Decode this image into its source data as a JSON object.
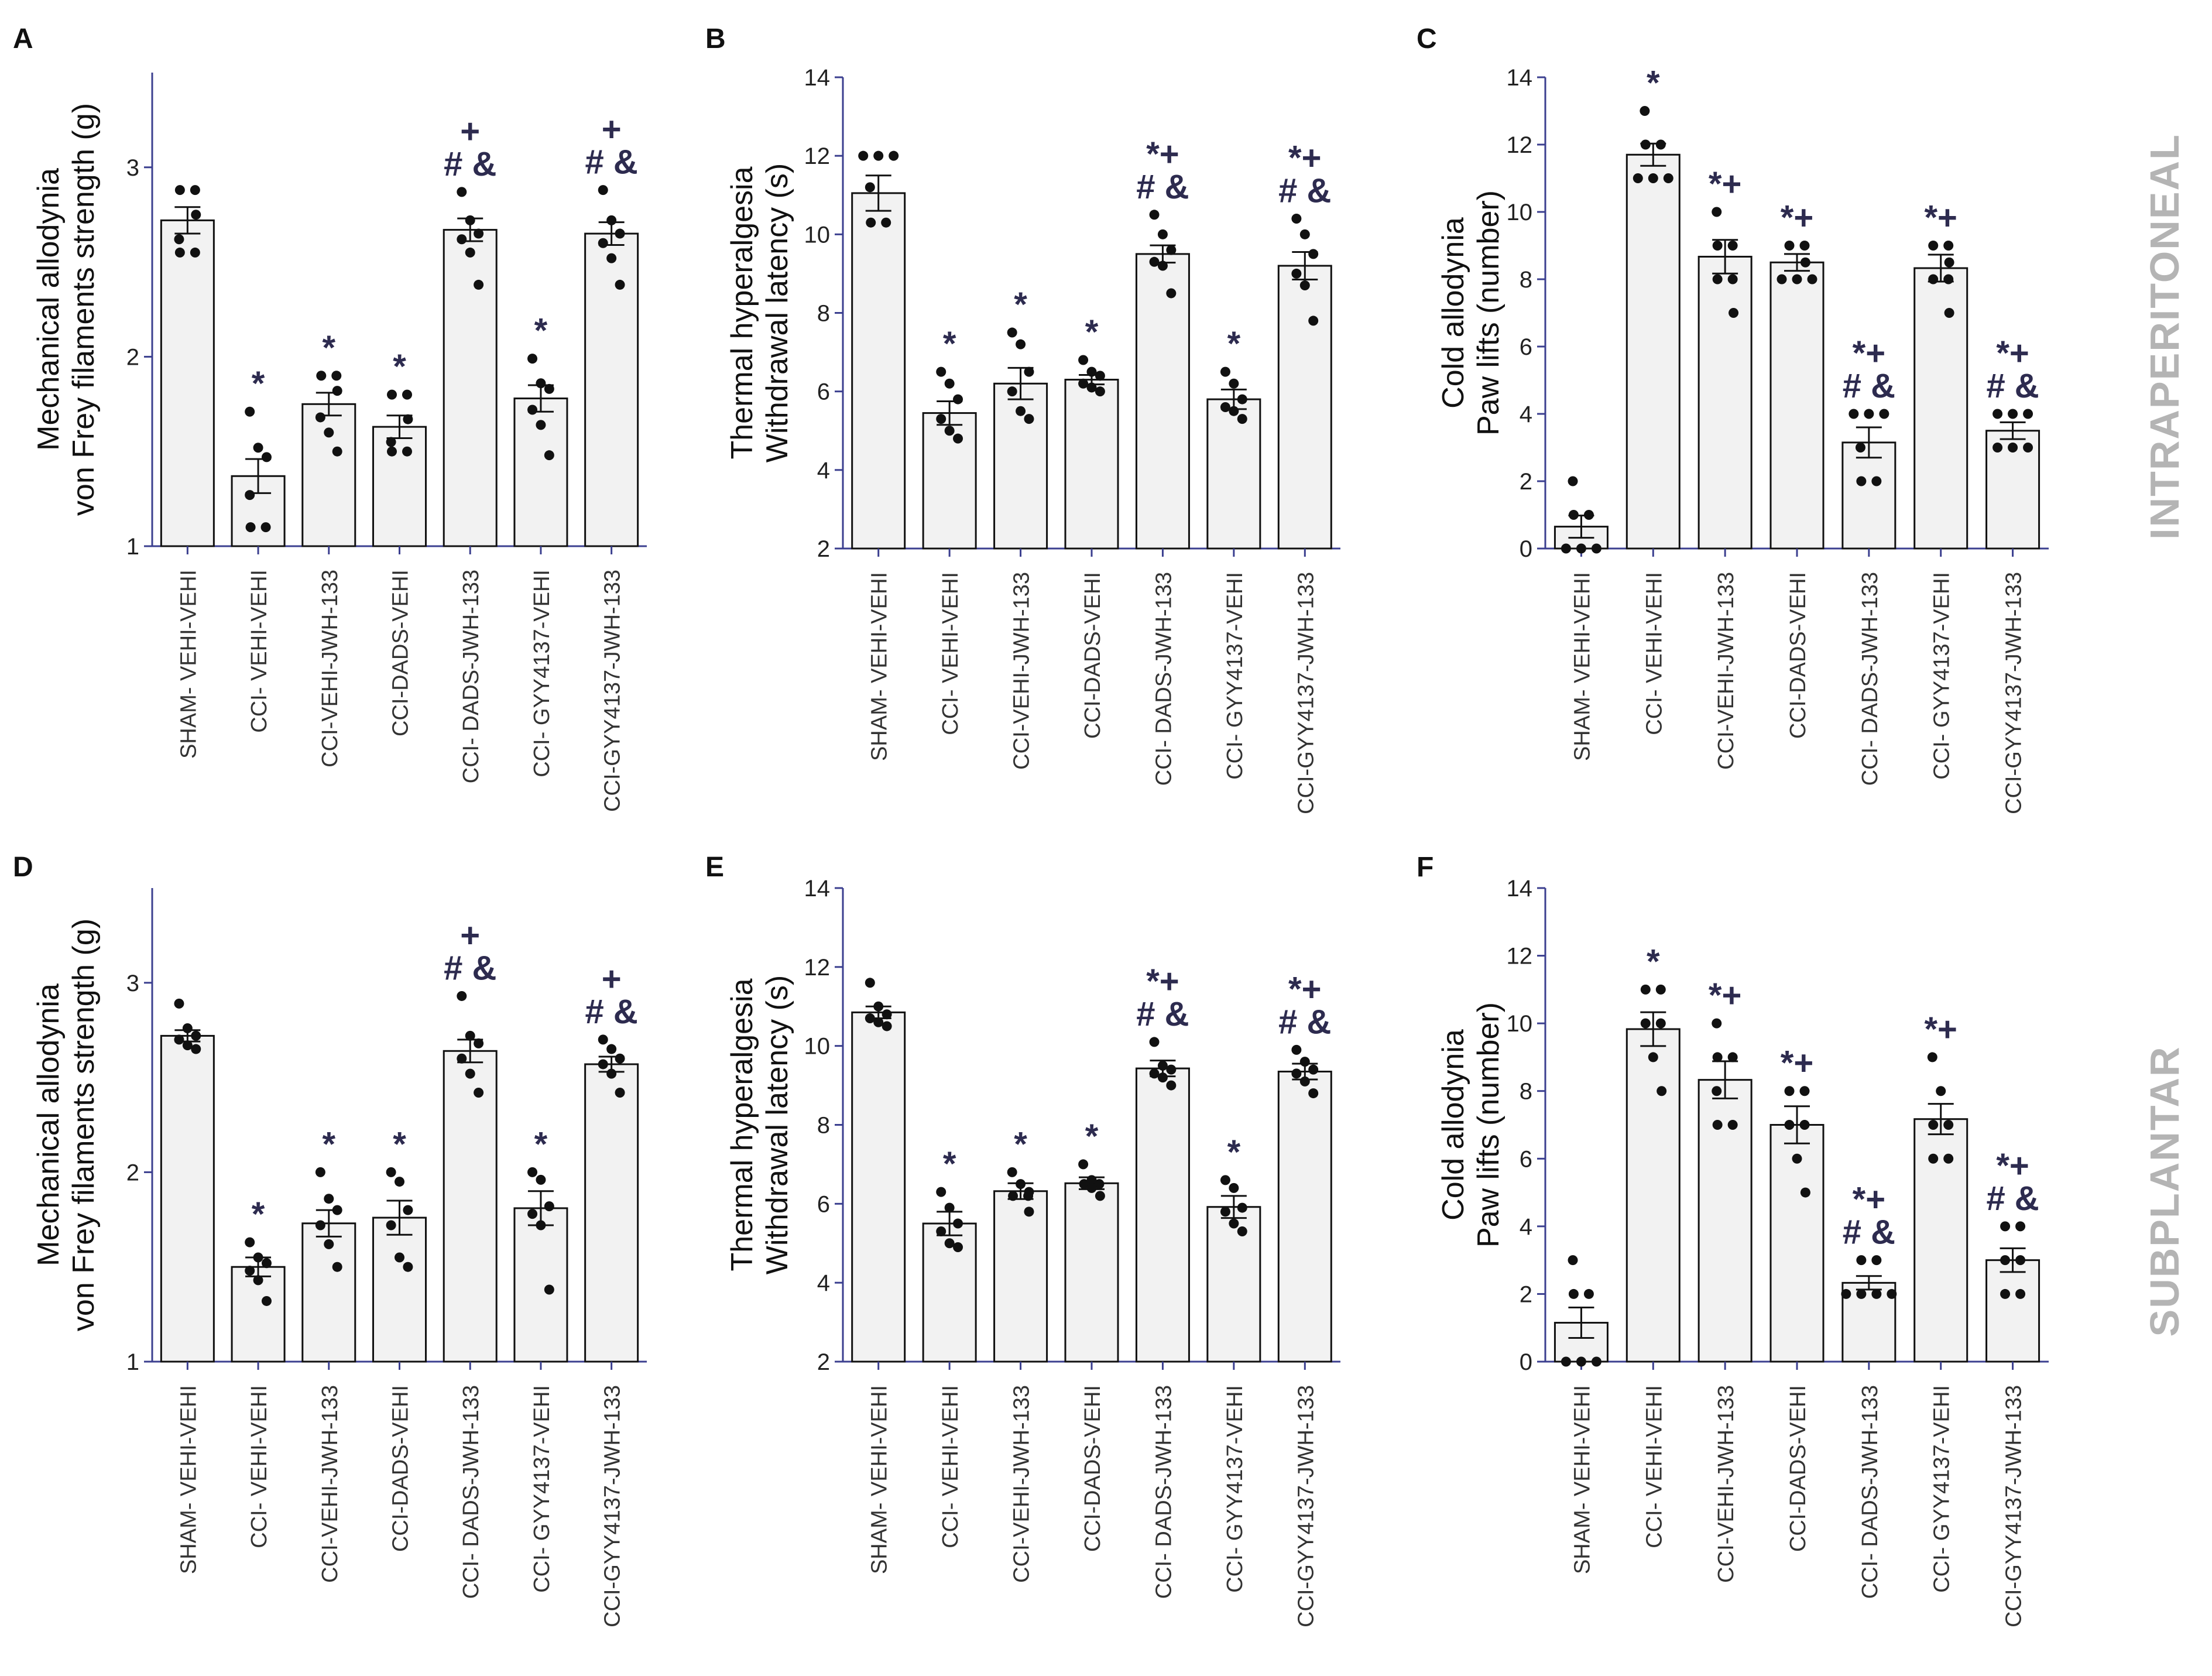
{
  "styles": {
    "bar_fill": "#f2f2f2",
    "axis_color": "#3b3f8f",
    "mark_color": "#111111",
    "sig_color": "#2d2b4f",
    "side_label_color": "#b4b4b4"
  },
  "side_labels": [
    "INTRAPERITONEAL",
    "SUBPLANTAR"
  ],
  "chart_data": [
    {
      "panel": "A",
      "type": "bar",
      "ylabel_lines": [
        "Mechanical allodynia",
        "von Frey filaments strength (g)"
      ],
      "ylim": [
        1,
        3.5
      ],
      "yticks": [
        1,
        2,
        3
      ],
      "categories": [
        "SHAM- VEHI-VEHI",
        "CCI- VEHI-VEHI",
        "CCI-VEHI-JWH-133",
        "CCI-DADS-VEHI",
        "CCI- DADS-JWH-133",
        "CCI- GYY4137-VEHI",
        "CCI-GYY4137-JWH-133"
      ],
      "values": [
        2.72,
        1.37,
        1.75,
        1.63,
        2.67,
        1.78,
        2.65
      ],
      "errors": [
        0.07,
        0.09,
        0.06,
        0.06,
        0.06,
        0.07,
        0.06
      ],
      "points": [
        [
          2.88,
          2.88,
          2.75,
          2.62,
          2.55,
          2.55
        ],
        [
          1.71,
          1.52,
          1.47,
          1.27,
          1.1,
          1.1
        ],
        [
          1.9,
          1.9,
          1.82,
          1.68,
          1.6,
          1.5
        ],
        [
          1.8,
          1.8,
          1.67,
          1.55,
          1.5,
          1.5
        ],
        [
          2.87,
          2.72,
          2.65,
          2.62,
          2.55,
          2.38
        ],
        [
          1.99,
          1.86,
          1.83,
          1.72,
          1.64,
          1.48
        ],
        [
          2.88,
          2.72,
          2.65,
          2.6,
          2.52,
          2.38
        ]
      ],
      "annotations": [
        {
          "index": 1,
          "lines": [
            "*"
          ]
        },
        {
          "index": 2,
          "lines": [
            "*"
          ]
        },
        {
          "index": 3,
          "lines": [
            "*"
          ]
        },
        {
          "index": 4,
          "lines": [
            "+",
            "# &"
          ]
        },
        {
          "index": 5,
          "lines": [
            "*"
          ]
        },
        {
          "index": 6,
          "lines": [
            "+",
            "# &"
          ]
        }
      ]
    },
    {
      "panel": "B",
      "type": "bar",
      "ylabel_lines": [
        "Thermal hyperalgesia",
        "Withdrawal latency (s)"
      ],
      "ylim": [
        2,
        14
      ],
      "yticks": [
        2,
        4,
        6,
        8,
        10,
        12,
        14
      ],
      "categories": [
        "SHAM- VEHI-VEHI",
        "CCI- VEHI-VEHI",
        "CCI-VEHI-JWH-133",
        "CCI-DADS-VEHI",
        "CCI- DADS-JWH-133",
        "CCI- GYY4137-VEHI",
        "CCI-GYY4137-JWH-133"
      ],
      "values": [
        11.05,
        5.45,
        6.2,
        6.3,
        9.5,
        5.8,
        9.2
      ],
      "errors": [
        0.45,
        0.3,
        0.4,
        0.12,
        0.22,
        0.25,
        0.35
      ],
      "points": [
        [
          12.0,
          12.0,
          12.0,
          11.2,
          10.3,
          10.3
        ],
        [
          6.5,
          6.2,
          5.8,
          5.3,
          5.0,
          4.8
        ],
        [
          7.5,
          7.2,
          6.5,
          6.0,
          5.5,
          5.3
        ],
        [
          6.8,
          6.5,
          6.4,
          6.2,
          6.1,
          6.0
        ],
        [
          10.5,
          10.0,
          9.6,
          9.3,
          9.2,
          8.5
        ],
        [
          6.5,
          6.2,
          5.8,
          5.6,
          5.5,
          5.3
        ],
        [
          10.4,
          10.0,
          9.5,
          9.0,
          8.7,
          7.8
        ]
      ],
      "annotations": [
        {
          "index": 1,
          "lines": [
            "*"
          ]
        },
        {
          "index": 2,
          "lines": [
            "*"
          ]
        },
        {
          "index": 3,
          "lines": [
            "*"
          ]
        },
        {
          "index": 4,
          "lines": [
            "*+",
            "# &"
          ]
        },
        {
          "index": 5,
          "lines": [
            "*"
          ]
        },
        {
          "index": 6,
          "lines": [
            "*+",
            "# &"
          ]
        }
      ]
    },
    {
      "panel": "C",
      "type": "bar",
      "ylabel_lines": [
        "Cold allodynia",
        "Paw lifts (number)"
      ],
      "ylim": [
        0,
        14
      ],
      "yticks": [
        0,
        2,
        4,
        6,
        8,
        10,
        12,
        14
      ],
      "categories": [
        "SHAM- VEHI-VEHI",
        "CCI- VEHI-VEHI",
        "CCI-VEHI-JWH-133",
        "CCI-DADS-VEHI",
        "CCI- DADS-JWH-133",
        "CCI- GYY4137-VEHI",
        "CCI-GYY4137-JWH-133"
      ],
      "values": [
        0.65,
        11.7,
        8.67,
        8.5,
        3.15,
        8.33,
        3.5
      ],
      "errors": [
        0.33,
        0.33,
        0.5,
        0.25,
        0.45,
        0.4,
        0.25
      ],
      "points": [
        [
          2.0,
          1.0,
          1.0,
          0.0,
          0.0,
          0.0
        ],
        [
          13.0,
          12.0,
          12.0,
          11.0,
          11.0,
          11.0
        ],
        [
          10.0,
          9.0,
          9.0,
          8.0,
          8.0,
          7.0
        ],
        [
          9.0,
          9.0,
          8.5,
          8.0,
          8.0,
          8.0
        ],
        [
          4.0,
          4.0,
          4.0,
          3.0,
          2.0,
          2.0
        ],
        [
          9.0,
          9.0,
          8.5,
          8.0,
          8.0,
          7.0
        ],
        [
          4.0,
          4.0,
          4.0,
          3.0,
          3.0,
          3.0
        ]
      ],
      "annotations": [
        {
          "index": 1,
          "lines": [
            "*"
          ]
        },
        {
          "index": 2,
          "lines": [
            "*+"
          ]
        },
        {
          "index": 3,
          "lines": [
            "*+"
          ]
        },
        {
          "index": 4,
          "lines": [
            "*+",
            "# &"
          ]
        },
        {
          "index": 5,
          "lines": [
            "*+"
          ]
        },
        {
          "index": 6,
          "lines": [
            "*+",
            "# &"
          ]
        }
      ]
    },
    {
      "panel": "D",
      "type": "bar",
      "ylabel_lines": [
        "Mechanical allodynia",
        "von Frey filaments strength (g)"
      ],
      "ylim": [
        1,
        3.5
      ],
      "yticks": [
        1,
        2,
        3
      ],
      "categories": [
        "SHAM- VEHI-VEHI",
        "CCI- VEHI-VEHI",
        "CCI-VEHI-JWH-133",
        "CCI-DADS-VEHI",
        "CCI- DADS-JWH-133",
        "CCI- GYY4137-VEHI",
        "CCI-GYY4137-JWH-133"
      ],
      "values": [
        2.72,
        1.5,
        1.73,
        1.76,
        2.64,
        1.81,
        2.57
      ],
      "errors": [
        0.03,
        0.05,
        0.07,
        0.09,
        0.06,
        0.09,
        0.04
      ],
      "points": [
        [
          2.89,
          2.76,
          2.72,
          2.7,
          2.67,
          2.65
        ],
        [
          1.63,
          1.55,
          1.52,
          1.48,
          1.43,
          1.32
        ],
        [
          2.0,
          1.86,
          1.8,
          1.72,
          1.62,
          1.5
        ],
        [
          2.0,
          1.95,
          1.8,
          1.72,
          1.55,
          1.5
        ],
        [
          2.93,
          2.72,
          2.68,
          2.6,
          2.52,
          2.42
        ],
        [
          2.0,
          1.96,
          1.82,
          1.78,
          1.72,
          1.38
        ],
        [
          2.7,
          2.65,
          2.6,
          2.57,
          2.52,
          2.42
        ]
      ],
      "annotations": [
        {
          "index": 1,
          "lines": [
            "*"
          ]
        },
        {
          "index": 2,
          "lines": [
            "*"
          ]
        },
        {
          "index": 3,
          "lines": [
            "*"
          ]
        },
        {
          "index": 4,
          "lines": [
            "+",
            "# &"
          ]
        },
        {
          "index": 5,
          "lines": [
            "*"
          ]
        },
        {
          "index": 6,
          "lines": [
            "+",
            "# &"
          ]
        }
      ]
    },
    {
      "panel": "E",
      "type": "bar",
      "ylabel_lines": [
        "Thermal hyperalgesia",
        "Withdrawal latency (s)"
      ],
      "ylim": [
        2,
        14
      ],
      "yticks": [
        2,
        4,
        6,
        8,
        10,
        12,
        14
      ],
      "categories": [
        "SHAM- VEHI-VEHI",
        "CCI- VEHI-VEHI",
        "CCI-VEHI-JWH-133",
        "CCI-DADS-VEHI",
        "CCI- DADS-JWH-133",
        "CCI- GYY4137-VEHI",
        "CCI-GYY4137-JWH-133"
      ],
      "values": [
        10.85,
        5.5,
        6.32,
        6.52,
        9.43,
        5.92,
        9.35
      ],
      "errors": [
        0.15,
        0.3,
        0.2,
        0.15,
        0.2,
        0.28,
        0.2
      ],
      "points": [
        [
          11.6,
          11.0,
          10.8,
          10.7,
          10.6,
          10.5
        ],
        [
          6.3,
          5.9,
          5.5,
          5.3,
          5.0,
          4.9
        ],
        [
          6.8,
          6.5,
          6.3,
          6.2,
          6.2,
          5.8
        ],
        [
          7.0,
          6.6,
          6.5,
          6.5,
          6.4,
          6.2
        ],
        [
          10.1,
          9.5,
          9.4,
          9.3,
          9.2,
          9.0
        ],
        [
          6.6,
          6.4,
          5.9,
          5.8,
          5.5,
          5.3
        ],
        [
          9.9,
          9.6,
          9.4,
          9.3,
          9.1,
          8.8
        ]
      ],
      "annotations": [
        {
          "index": 1,
          "lines": [
            "*"
          ]
        },
        {
          "index": 2,
          "lines": [
            "*"
          ]
        },
        {
          "index": 3,
          "lines": [
            "*"
          ]
        },
        {
          "index": 4,
          "lines": [
            "*+",
            "# &"
          ]
        },
        {
          "index": 5,
          "lines": [
            "*"
          ]
        },
        {
          "index": 6,
          "lines": [
            "*+",
            "# &"
          ]
        }
      ]
    },
    {
      "panel": "F",
      "type": "bar",
      "ylabel_lines": [
        "Cold allodynia",
        "Paw lifts (number)"
      ],
      "ylim": [
        0,
        14
      ],
      "yticks": [
        0,
        2,
        4,
        6,
        8,
        10,
        12,
        14
      ],
      "categories": [
        "SHAM- VEHI-VEHI",
        "CCI- VEHI-VEHI",
        "CCI-VEHI-JWH-133",
        "CCI-DADS-VEHI",
        "CCI- DADS-JWH-133",
        "CCI- GYY4137-VEHI",
        "CCI-GYY4137-JWH-133"
      ],
      "values": [
        1.15,
        9.83,
        8.33,
        7.0,
        2.33,
        7.17,
        3.0
      ],
      "errors": [
        0.45,
        0.5,
        0.55,
        0.55,
        0.2,
        0.45,
        0.35
      ],
      "points": [
        [
          3.0,
          2.0,
          2.0,
          0.0,
          0.0,
          0.0
        ],
        [
          11.0,
          11.0,
          10.0,
          10.0,
          9.0,
          8.0
        ],
        [
          10.0,
          9.0,
          9.0,
          8.0,
          7.0,
          7.0
        ],
        [
          8.0,
          8.0,
          7.0,
          7.0,
          6.0,
          5.0
        ],
        [
          3.0,
          3.0,
          2.0,
          2.0,
          2.0,
          2.0
        ],
        [
          9.0,
          8.0,
          7.0,
          7.0,
          6.0,
          6.0
        ],
        [
          4.0,
          4.0,
          3.0,
          3.0,
          2.0,
          2.0
        ]
      ],
      "annotations": [
        {
          "index": 1,
          "lines": [
            "*"
          ]
        },
        {
          "index": 2,
          "lines": [
            "*+"
          ]
        },
        {
          "index": 3,
          "lines": [
            "*+"
          ]
        },
        {
          "index": 4,
          "lines": [
            "*+",
            "# &"
          ]
        },
        {
          "index": 5,
          "lines": [
            "*+"
          ]
        },
        {
          "index": 6,
          "lines": [
            "*+",
            "# &"
          ]
        }
      ]
    }
  ]
}
